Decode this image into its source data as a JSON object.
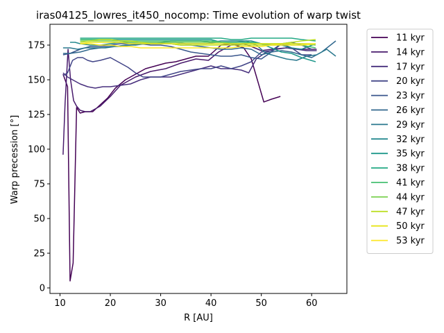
{
  "chart_data": {
    "type": "line",
    "title": "iras04125_lowres_it450_nocomp: Time evolution of warp twist",
    "xlabel": "R [AU]",
    "ylabel": "Warp precession [°]",
    "xlim": [
      8,
      67
    ],
    "ylim": [
      -4,
      190
    ],
    "xticks": [
      10,
      20,
      30,
      40,
      50,
      60
    ],
    "yticks": [
      0,
      25,
      50,
      75,
      100,
      125,
      150,
      175
    ],
    "legend_position": "outside-right",
    "series": [
      {
        "name": "11 kyr",
        "color": "#440154",
        "x": [
          10.6,
          11.0,
          11.5,
          12.0,
          12.6,
          13.3,
          14.0,
          15.0,
          16.5,
          18.0,
          19.5,
          21.0,
          23.0,
          25.0,
          27.0,
          29.0,
          31.0,
          33.0,
          35.0,
          37.0,
          39.5,
          42.0,
          44.0,
          46.5,
          48.0,
          50.5,
          52.0,
          53.8
        ],
        "y": [
          154,
          150,
          145,
          5,
          18,
          130,
          126,
          127,
          127,
          132,
          137,
          144,
          150,
          154,
          158,
          160,
          162,
          163,
          165,
          167,
          167,
          175,
          176,
          173,
          165,
          134,
          136,
          138
        ]
      },
      {
        "name": "14 kyr",
        "color": "#481a6c",
        "x": [
          10.6,
          11.0,
          11.6,
          12.1,
          12.7,
          13.3,
          14.0,
          15.0,
          16.0,
          18.0,
          20.0,
          22.0,
          25.0,
          28.0,
          31.0,
          34.0,
          37.0,
          39.5,
          41.5,
          44.0,
          46.5,
          48.0,
          50.0,
          52.0,
          55.0,
          58.0,
          61.0
        ],
        "y": [
          96,
          133,
          172,
          150,
          135,
          131,
          128,
          127,
          127,
          131,
          138,
          146,
          152,
          156,
          158,
          162,
          165,
          164,
          170,
          175,
          176,
          174,
          171,
          172,
          173,
          172,
          172
        ]
      },
      {
        "name": "17 kyr",
        "color": "#472f7d",
        "x": [
          10.6,
          11.5,
          12.5,
          14.0,
          15.5,
          17.0,
          18.5,
          20.0,
          22.0,
          24.0,
          26.0,
          28.0,
          30.0,
          32.0,
          34.0,
          36.0,
          38.0,
          40.0,
          42.0,
          44.0,
          46.0,
          47.5,
          49.0,
          51.0,
          53.0,
          55.0,
          57.0,
          59.0,
          61.0
        ],
        "y": [
          155,
          152,
          150,
          147,
          145,
          144,
          145,
          145,
          146,
          147,
          150,
          152,
          152,
          152,
          154,
          156,
          158,
          160,
          158,
          158,
          157,
          155,
          165,
          170,
          172,
          173,
          172,
          171,
          171
        ]
      },
      {
        "name": "20 kyr",
        "color": "#414487",
        "x": [
          10.6,
          11.5,
          12.5,
          13.5,
          14.5,
          15.5,
          16.5,
          18.0,
          20.0,
          22.0,
          23.5,
          25.0,
          26.5,
          28.0,
          30.0,
          32.0,
          34.0,
          36.0,
          38.0,
          40.0,
          42.0,
          44.0,
          46.0,
          48.0,
          50.0,
          52.0,
          54.0,
          56.0,
          58.0,
          60.0
        ],
        "y": [
          153,
          155,
          164,
          166,
          166,
          164,
          163,
          164,
          166,
          162,
          159,
          155,
          152,
          152,
          152,
          154,
          156,
          157,
          158,
          158,
          160,
          158,
          160,
          163,
          170,
          171,
          176,
          173,
          168,
          168
        ]
      },
      {
        "name": "23 kyr",
        "color": "#39568c",
        "x": [
          10.6,
          12.0,
          14.0,
          16.0,
          18.0,
          20.0,
          22.0,
          24.0,
          26.0,
          28.0,
          30.0,
          32.0,
          34.0,
          36.0,
          38.0,
          40.0,
          42.0,
          44.0,
          46.0,
          48.0,
          50.0,
          52.0,
          54.0,
          56.0,
          58.0,
          60.0
        ],
        "y": [
          168,
          169,
          172,
          174,
          174,
          175,
          176,
          176,
          176,
          175,
          175,
          174,
          172,
          170,
          169,
          168,
          167,
          167,
          168,
          166,
          165,
          170,
          176,
          177,
          175,
          172
        ]
      },
      {
        "name": "26 kyr",
        "color": "#31688e",
        "x": [
          10.6,
          12.0,
          14.0,
          16.0,
          18.0,
          20.0,
          22.0,
          24.0,
          26.0,
          28.0,
          30.0,
          32.0,
          34.0,
          36.0,
          38.0,
          40.0,
          42.0,
          44.0,
          46.0,
          48.0,
          50.0,
          52.0,
          54.0,
          56.0,
          58.0,
          60.0,
          62.0,
          64.8
        ],
        "y": [
          169,
          169,
          170,
          172,
          173,
          174,
          174,
          175,
          176,
          176,
          176,
          176,
          175,
          175,
          174,
          173,
          172,
          172,
          173,
          172,
          168,
          170,
          171,
          170,
          168,
          166,
          170,
          178
        ]
      },
      {
        "name": "29 kyr",
        "color": "#2a788e",
        "x": [
          10.6,
          12.0,
          13.5,
          15.0,
          17.0,
          19.0,
          21.0,
          23.0,
          25.0,
          27.0,
          29.0,
          31.0,
          33.0,
          35.0,
          37.0,
          39.0,
          41.0,
          43.0,
          45.0,
          47.0,
          49.0,
          51.0,
          53.0,
          55.0,
          57.0,
          59.0,
          61.0,
          63.0,
          64.8
        ],
        "y": [
          173,
          173,
          172,
          173,
          173,
          173,
          174,
          175,
          175,
          176,
          176,
          177,
          177,
          176,
          176,
          176,
          177,
          177,
          177,
          178,
          175,
          169,
          167,
          165,
          164,
          167,
          168,
          172,
          167
        ]
      },
      {
        "name": "32 kyr",
        "color": "#23888e",
        "x": [
          12.0,
          13.0,
          14.0,
          16.0,
          18.0,
          20.0,
          22.0,
          24.0,
          26.0,
          28.0,
          30.0,
          32.0,
          34.0,
          36.0,
          38.0,
          40.0,
          42.0,
          44.0,
          46.0,
          48.0,
          50.0,
          52.0,
          54.0,
          56.0,
          58.0,
          60.8
        ],
        "y": [
          177,
          177,
          176,
          175,
          175,
          176,
          177,
          177,
          177,
          177,
          177,
          178,
          178,
          178,
          178,
          177,
          178,
          178,
          178,
          178,
          176,
          175,
          175,
          173,
          172,
          176
        ]
      },
      {
        "name": "35 kyr",
        "color": "#1f988b",
        "x": [
          14.0,
          16.0,
          18.0,
          20.0,
          22.0,
          24.0,
          26.0,
          28.0,
          30.0,
          32.0,
          34.0,
          36.0,
          38.0,
          40.0,
          42.0,
          44.0,
          46.0,
          48.0,
          50.0,
          52.0,
          54.0,
          56.0,
          58.0,
          60.8
        ],
        "y": [
          179,
          179,
          179,
          179,
          179,
          179,
          179,
          179,
          179,
          179,
          179,
          179,
          179,
          179,
          177,
          176,
          176,
          177,
          176,
          173,
          170,
          169,
          166,
          163
        ]
      },
      {
        "name": "38 kyr",
        "color": "#22a884",
        "x": [
          14.0,
          16.0,
          18.0,
          20.0,
          22.0,
          24.0,
          26.0,
          28.0,
          30.0,
          32.0,
          34.0,
          36.0,
          38.0,
          40.0,
          42.0,
          44.0,
          46.0,
          48.0,
          50.0,
          52.0,
          54.0,
          56.0,
          58.0,
          60.8
        ],
        "y": [
          180,
          180,
          180,
          180,
          180,
          180,
          180,
          180,
          180,
          180,
          180,
          180,
          180,
          180,
          180,
          179,
          179,
          180,
          180,
          180,
          180,
          180,
          179,
          178
        ]
      },
      {
        "name": "41 kyr",
        "color": "#44bf70",
        "x": [
          14.0,
          16.0,
          18.0,
          20.0,
          22.0,
          24.0,
          26.0,
          28.0,
          30.0,
          32.0,
          34.0,
          36.0,
          38.0,
          40.0,
          42.0,
          44.0,
          46.0,
          48.0,
          50.0,
          52.0,
          54.0,
          56.0,
          58.0,
          60.8
        ],
        "y": [
          179,
          179,
          179,
          179,
          178,
          178,
          178,
          178,
          178,
          178,
          178,
          178,
          178,
          178,
          177,
          177,
          177,
          177,
          176,
          176,
          176,
          175,
          175,
          173
        ]
      },
      {
        "name": "44 kyr",
        "color": "#7ad151",
        "x": [
          14.0,
          16.0,
          18.0,
          20.0,
          22.0,
          24.0,
          26.0,
          28.0,
          30.0,
          32.0,
          34.0,
          36.0,
          38.0,
          40.0,
          42.0,
          44.0,
          46.0,
          48.0,
          50.0,
          52.0,
          54.0,
          56.0,
          58.0,
          60.8
        ],
        "y": [
          178,
          178,
          178,
          178,
          178,
          177,
          177,
          177,
          177,
          177,
          177,
          177,
          177,
          177,
          177,
          176,
          176,
          176,
          176,
          176,
          176,
          176,
          176,
          175
        ]
      },
      {
        "name": "47 kyr",
        "color": "#bddf26",
        "x": [
          14.0,
          16.0,
          18.0,
          20.0,
          22.0,
          24.0,
          26.0,
          28.0,
          30.0,
          32.0,
          34.0,
          36.0,
          38.0,
          40.0,
          42.0,
          44.0,
          46.0,
          48.0,
          50.0,
          52.0,
          54.0,
          56.0,
          58.0,
          60.8
        ],
        "y": [
          177,
          178,
          179,
          179,
          178,
          178,
          177,
          176,
          176,
          176,
          175,
          175,
          175,
          175,
          175,
          175,
          175,
          175,
          175,
          175,
          176,
          177,
          178,
          179
        ]
      },
      {
        "name": "50 kyr",
        "color": "#e6e419",
        "x": [
          14.0,
          16.0,
          18.0,
          20.0,
          22.0,
          24.0,
          26.0,
          28.0,
          30.0,
          32.0,
          34.0,
          36.0,
          38.0,
          40.0,
          42.0,
          44.0,
          46.0,
          48.0,
          50.0,
          52.0,
          54.0,
          56.0,
          58.0,
          60.8
        ],
        "y": [
          176,
          177,
          177,
          177,
          177,
          176,
          176,
          176,
          176,
          176,
          176,
          176,
          176,
          176,
          176,
          176,
          176,
          176,
          176,
          176,
          176,
          176,
          176,
          176
        ]
      },
      {
        "name": "53 kyr",
        "color": "#fde725",
        "x": [
          14.0,
          16.0,
          18.0,
          20.0,
          22.0,
          24.0,
          26.0,
          28.0,
          30.0,
          32.0,
          34.0,
          36.0,
          38.0,
          40.0,
          42.0,
          44.0,
          46.0,
          48.0,
          50.0,
          52.0,
          54.0,
          56.0,
          58.0,
          60.8
        ],
        "y": [
          176,
          176,
          175,
          175,
          174,
          174,
          173,
          173,
          173,
          173,
          173,
          173,
          173,
          173,
          173,
          173,
          174,
          174,
          174,
          175,
          175,
          175,
          175,
          176
        ]
      }
    ]
  }
}
